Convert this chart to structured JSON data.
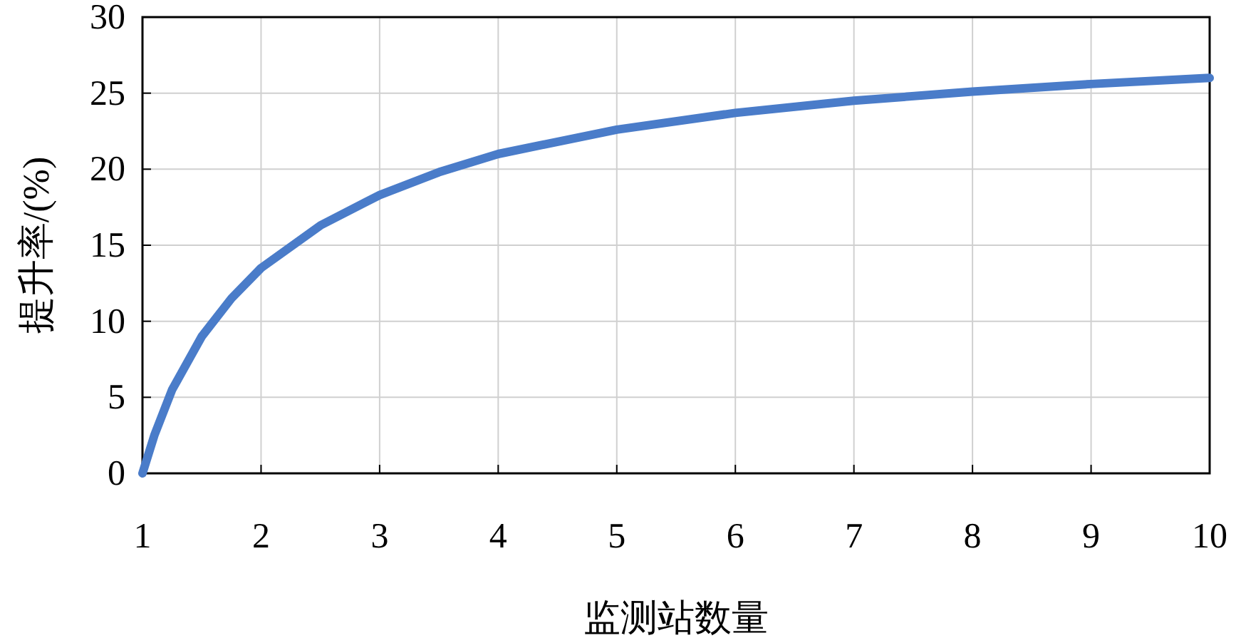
{
  "chart_data": {
    "type": "line",
    "xlabel": "监测站数量",
    "ylabel": "提升率/(%)",
    "x": [
      1,
      1.1,
      1.25,
      1.5,
      1.75,
      2,
      2.5,
      3,
      3.5,
      4,
      5,
      6,
      7,
      8,
      9,
      10
    ],
    "values": [
      0,
      2.5,
      5.5,
      9,
      11.5,
      13.5,
      16.3,
      18.3,
      19.8,
      21,
      22.6,
      23.7,
      24.5,
      25.1,
      25.6,
      26
    ],
    "color": "#4a7cc9",
    "xlim": [
      1,
      10
    ],
    "ylim": [
      0,
      30
    ],
    "xticks": [
      1,
      2,
      3,
      4,
      5,
      6,
      7,
      8,
      9,
      10
    ],
    "yticks": [
      0,
      5,
      10,
      15,
      20,
      25,
      30
    ],
    "grid": true
  }
}
